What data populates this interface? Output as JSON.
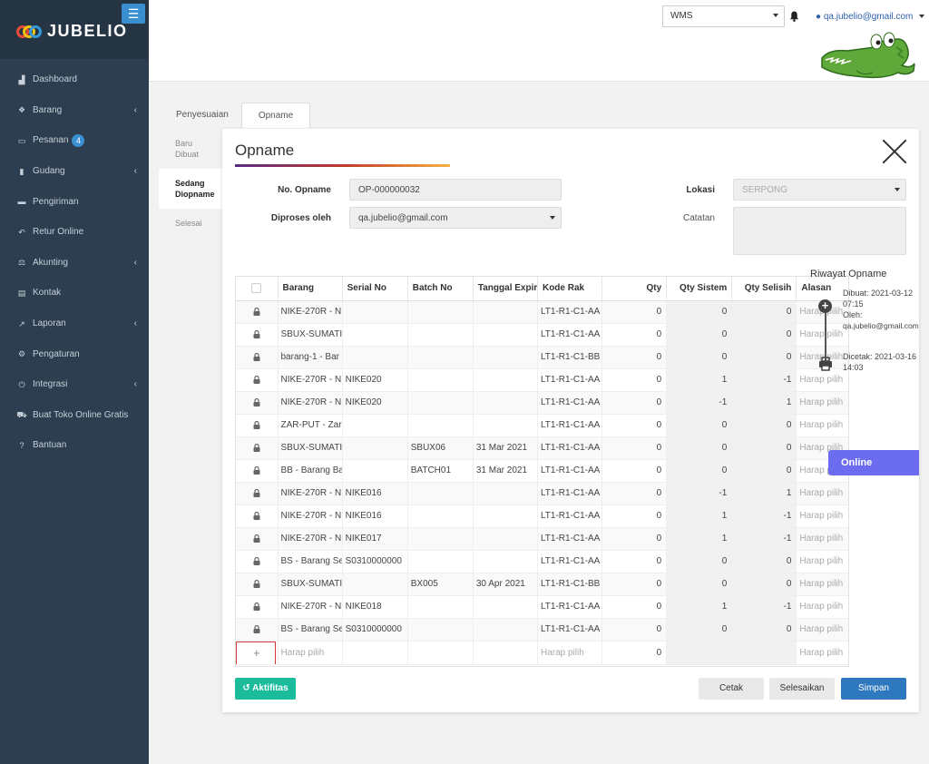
{
  "brand": {
    "name": "JUBELIO"
  },
  "sidebar": {
    "items": [
      {
        "label": "Dashboard",
        "icon": "dashboard-icon",
        "chevron": false
      },
      {
        "label": "Barang",
        "icon": "cubes-icon",
        "chevron": true
      },
      {
        "label": "Pesanan",
        "icon": "basket-icon",
        "chevron": false,
        "badge": "4"
      },
      {
        "label": "Gudang",
        "icon": "building-icon",
        "chevron": true
      },
      {
        "label": "Pengiriman",
        "icon": "truck-icon",
        "chevron": false
      },
      {
        "label": "Retur Online",
        "icon": "reply-icon",
        "chevron": false
      },
      {
        "label": "Akunting",
        "icon": "balance-scale-icon",
        "chevron": true
      },
      {
        "label": "Kontak",
        "icon": "address-card-icon",
        "chevron": false
      },
      {
        "label": "Laporan",
        "icon": "chart-icon",
        "chevron": true
      },
      {
        "label": "Pengaturan",
        "icon": "cogs-icon",
        "chevron": false
      },
      {
        "label": "Integrasi",
        "icon": "plug-icon",
        "chevron": true
      },
      {
        "label": "Buat Toko Online Gratis",
        "icon": "cart-icon",
        "chevron": false
      },
      {
        "label": "Bantuan",
        "icon": "question-icon",
        "chevron": false
      }
    ]
  },
  "header": {
    "warehouse_select": "WMS",
    "user_email": "qa.jubelio@gmail.com"
  },
  "tabs": [
    {
      "label": "Penyesuaian"
    },
    {
      "label": "Opname"
    }
  ],
  "subtabs": [
    {
      "label": "Baru Dibuat"
    },
    {
      "label": "Sedang Diopname"
    },
    {
      "label": "Selesai"
    }
  ],
  "modal": {
    "title": "Opname",
    "form": {
      "no_opname_label": "No. Opname",
      "no_opname_value": "OP-000000032",
      "diproses_label": "Diproses oleh",
      "diproses_value": "qa.jubelio@gmail.com",
      "lokasi_label": "Lokasi",
      "lokasi_value": "SERPONG",
      "catatan_label": "Catatan"
    },
    "table": {
      "columns": [
        "Barang",
        "Serial No",
        "Batch No",
        "Tanggal Expir",
        "Kode Rak",
        "Qty",
        "Qty Sistem",
        "Qty Selisih",
        "Alasan"
      ],
      "rows": [
        {
          "barang": "NIKE-270R - N",
          "serial": "",
          "batch": "",
          "exp": "",
          "rak": "LT1-R1-C1-AA",
          "qty": "0",
          "sys": "0",
          "diff": "0",
          "alasan": "Harap pilih"
        },
        {
          "barang": "SBUX-SUMATI",
          "serial": "",
          "batch": "",
          "exp": "",
          "rak": "LT1-R1-C1-AA",
          "qty": "0",
          "sys": "0",
          "diff": "0",
          "alasan": "Harap pilih"
        },
        {
          "barang": "barang-1 - Bar",
          "serial": "",
          "batch": "",
          "exp": "",
          "rak": "LT1-R1-C1-BB",
          "qty": "0",
          "sys": "0",
          "diff": "0",
          "alasan": "Harap pilih"
        },
        {
          "barang": "NIKE-270R - N",
          "serial": "NIKE020",
          "batch": "",
          "exp": "",
          "rak": "LT1-R1-C1-AA",
          "qty": "0",
          "sys": "1",
          "diff": "-1",
          "alasan": "Harap pilih"
        },
        {
          "barang": "NIKE-270R - N",
          "serial": "NIKE020",
          "batch": "",
          "exp": "",
          "rak": "LT1-R1-C1-AA",
          "qty": "0",
          "sys": "-1",
          "diff": "1",
          "alasan": "Harap pilih"
        },
        {
          "barang": "ZAR-PUT - Zar",
          "serial": "",
          "batch": "",
          "exp": "",
          "rak": "LT1-R1-C1-AA",
          "qty": "0",
          "sys": "0",
          "diff": "0",
          "alasan": "Harap pilih"
        },
        {
          "barang": "SBUX-SUMATI",
          "serial": "",
          "batch": "SBUX06",
          "exp": "31 Mar 2021",
          "rak": "LT1-R1-C1-AA",
          "qty": "0",
          "sys": "0",
          "diff": "0",
          "alasan": "Harap pilih"
        },
        {
          "barang": "BB - Barang Ba",
          "serial": "",
          "batch": "BATCH01",
          "exp": "31 Mar 2021",
          "rak": "LT1-R1-C1-AA",
          "qty": "0",
          "sys": "0",
          "diff": "0",
          "alasan": "Harap pilih"
        },
        {
          "barang": "NIKE-270R - N",
          "serial": "NIKE016",
          "batch": "",
          "exp": "",
          "rak": "LT1-R1-C1-AA",
          "qty": "0",
          "sys": "-1",
          "diff": "1",
          "alasan": "Harap pilih"
        },
        {
          "barang": "NIKE-270R - N",
          "serial": "NIKE016",
          "batch": "",
          "exp": "",
          "rak": "LT1-R1-C1-AA",
          "qty": "0",
          "sys": "1",
          "diff": "-1",
          "alasan": "Harap pilih"
        },
        {
          "barang": "NIKE-270R - N",
          "serial": "NIKE017",
          "batch": "",
          "exp": "",
          "rak": "LT1-R1-C1-AA",
          "qty": "0",
          "sys": "1",
          "diff": "-1",
          "alasan": "Harap pilih"
        },
        {
          "barang": "BS - Barang Se",
          "serial": "S0310000000",
          "batch": "",
          "exp": "",
          "rak": "LT1-R1-C1-AA",
          "qty": "0",
          "sys": "0",
          "diff": "0",
          "alasan": "Harap pilih"
        },
        {
          "barang": "SBUX-SUMATI",
          "serial": "",
          "batch": "BX005",
          "exp": "30 Apr 2021",
          "rak": "LT1-R1-C1-BB",
          "qty": "0",
          "sys": "0",
          "diff": "0",
          "alasan": "Harap pilih"
        },
        {
          "barang": "NIKE-270R - N",
          "serial": "NIKE018",
          "batch": "",
          "exp": "",
          "rak": "LT1-R1-C1-AA",
          "qty": "0",
          "sys": "1",
          "diff": "-1",
          "alasan": "Harap pilih"
        },
        {
          "barang": "BS - Barang Se",
          "serial": "S0310000000",
          "batch": "",
          "exp": "",
          "rak": "LT1-R1-C1-AA",
          "qty": "0",
          "sys": "0",
          "diff": "0",
          "alasan": "Harap pilih"
        }
      ],
      "new_row": {
        "barang": "Harap pilih",
        "rak": "Harap pilih",
        "qty": "0",
        "alasan": "Harap pilih"
      }
    },
    "riwayat": {
      "title": "Riwayat Opname",
      "created": "Dibuat: 2021-03-12 07:15",
      "by_label": "Oleh:",
      "by_value": "qa.jubelio@gmail.com",
      "printed": "Dicetak: 2021-03-16 14:03"
    },
    "buttons": {
      "aktifitas": "Aktifitas",
      "cetak": "Cetak",
      "selesaikan": "Selesaikan",
      "simpan": "Simpan"
    }
  },
  "online_widget": {
    "label": "Online"
  }
}
